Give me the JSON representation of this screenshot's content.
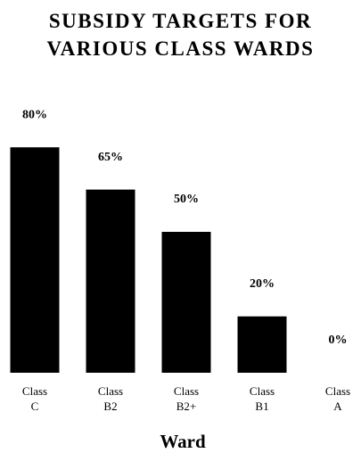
{
  "chart_data": {
    "type": "bar",
    "title": "SUBSIDY TARGETS FOR VARIOUS CLASS WARDS",
    "categories": [
      "Class C",
      "Class B2",
      "Class B2+",
      "Class B1",
      "Class A"
    ],
    "values": [
      80,
      65,
      50,
      20,
      0
    ],
    "value_labels": [
      "80%",
      "65%",
      "50%",
      "20%",
      "0%"
    ],
    "color": "#000000",
    "x_label": "Ward"
  }
}
